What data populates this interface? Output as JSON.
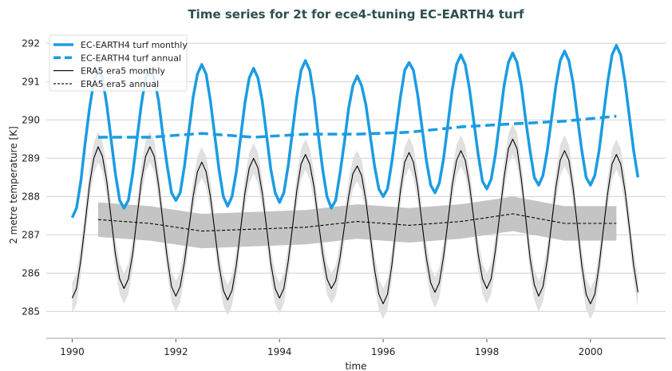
{
  "chart_data": {
    "type": "line",
    "title": "Time series for 2t for ece4-tuning EC-EARTH4 turf",
    "xlabel": "time",
    "ylabel": "2 metre temperature [K]",
    "xlim": [
      1989.5,
      2001.45
    ],
    "ylim": [
      284.3,
      292.3
    ],
    "xticks": [
      1990,
      1992,
      1994,
      1996,
      1998,
      2000
    ],
    "yticks": [
      285,
      286,
      287,
      288,
      289,
      290,
      291,
      292
    ],
    "grid": "horizontal",
    "legend_placement": "top-left",
    "colors": {
      "ec_earth": "#1b9ce2",
      "era5": "#000000",
      "band": "#c8c8c8",
      "title": "#2f4f4f"
    },
    "series": [
      {
        "name": "EC-EARTH4 turf monthly",
        "style": "solid-thick",
        "color": "#1b9ce2",
        "monthly_by_year": [
          {
            "year": 1990,
            "values": [
              287.45,
              287.7,
              288.4,
              289.4,
              290.3,
              291.0,
              291.3,
              291.1,
              290.4,
              289.5,
              288.6,
              287.9
            ]
          },
          {
            "year": 1991,
            "values": [
              287.7,
              287.9,
              288.6,
              289.5,
              290.4,
              291.1,
              291.3,
              291.1,
              290.5,
              289.6,
              288.8,
              288.1
            ]
          },
          {
            "year": 1992,
            "values": [
              287.9,
              288.1,
              288.8,
              289.7,
              290.6,
              291.2,
              291.45,
              291.2,
              290.5,
              289.6,
              288.7,
              288.0
            ]
          },
          {
            "year": 1993,
            "values": [
              287.75,
              288.0,
              288.65,
              289.55,
              290.45,
              291.1,
              291.35,
              291.1,
              290.5,
              289.6,
              288.7,
              288.1
            ]
          },
          {
            "year": 1994,
            "values": [
              287.85,
              288.1,
              288.8,
              289.7,
              290.6,
              291.3,
              291.55,
              291.3,
              290.6,
              289.6,
              288.7,
              288.0
            ]
          },
          {
            "year": 1995,
            "values": [
              287.7,
              287.9,
              288.6,
              289.4,
              290.3,
              290.9,
              291.15,
              290.9,
              290.4,
              289.6,
              288.8,
              288.2
            ]
          },
          {
            "year": 1996,
            "values": [
              288.0,
              288.2,
              288.9,
              289.75,
              290.6,
              291.3,
              291.5,
              291.3,
              290.65,
              289.8,
              288.95,
              288.3
            ]
          },
          {
            "year": 1997,
            "values": [
              288.1,
              288.35,
              289.0,
              289.9,
              290.8,
              291.45,
              291.7,
              291.45,
              290.8,
              289.95,
              289.1,
              288.4
            ]
          },
          {
            "year": 1998,
            "values": [
              288.2,
              288.45,
              289.1,
              290.0,
              290.9,
              291.5,
              291.75,
              291.5,
              290.9,
              290.0,
              289.2,
              288.5
            ]
          },
          {
            "year": 1999,
            "values": [
              288.3,
              288.55,
              289.2,
              290.05,
              290.9,
              291.55,
              291.8,
              291.55,
              290.95,
              290.05,
              289.2,
              288.5
            ]
          },
          {
            "year": 2000,
            "values": [
              288.3,
              288.55,
              289.2,
              290.1,
              291.0,
              291.7,
              291.95,
              291.7,
              291.0,
              290.1,
              289.2,
              288.5
            ]
          }
        ]
      },
      {
        "name": "EC-EARTH4 turf annual",
        "style": "dashed-thick",
        "color": "#1b9ce2",
        "x": [
          1990.5,
          1991.5,
          1992.5,
          1993.5,
          1994.5,
          1995.5,
          1996.5,
          1997.5,
          1998.5,
          1999.5,
          2000.5
        ],
        "values": [
          289.55,
          289.55,
          289.65,
          289.55,
          289.63,
          289.63,
          289.68,
          289.82,
          289.9,
          289.97,
          290.1
        ]
      },
      {
        "name": "ERA5 era5 monthly",
        "style": "solid-thin",
        "color": "#000000",
        "band_halfwidth": 0.4,
        "monthly_by_year": [
          {
            "year": 1990,
            "values": [
              285.35,
              285.6,
              286.35,
              287.3,
              288.3,
              289.0,
              289.3,
              289.05,
              288.4,
              287.45,
              286.5,
              285.85
            ]
          },
          {
            "year": 1991,
            "values": [
              285.6,
              285.85,
              286.5,
              287.45,
              288.4,
              289.05,
              289.3,
              289.05,
              288.3,
              287.35,
              286.4,
              285.65
            ]
          },
          {
            "year": 1992,
            "values": [
              285.4,
              285.65,
              286.3,
              287.15,
              288.0,
              288.65,
              288.9,
              288.65,
              288.0,
              287.1,
              286.2,
              285.55
            ]
          },
          {
            "year": 1993,
            "values": [
              285.3,
              285.55,
              286.2,
              287.15,
              288.1,
              288.75,
              289.0,
              288.75,
              288.1,
              287.2,
              286.25,
              285.6
            ]
          },
          {
            "year": 1994,
            "values": [
              285.35,
              285.6,
              286.3,
              287.2,
              288.15,
              288.85,
              289.1,
              288.85,
              288.25,
              287.35,
              286.5,
              285.85
            ]
          },
          {
            "year": 1995,
            "values": [
              285.6,
              285.8,
              286.4,
              287.2,
              288.0,
              288.6,
              288.8,
              288.55,
              287.9,
              287.0,
              286.1,
              285.45
            ]
          },
          {
            "year": 1996,
            "values": [
              285.2,
              285.45,
              286.2,
              287.2,
              288.15,
              288.9,
              289.15,
              288.9,
              288.25,
              287.3,
              286.4,
              285.75
            ]
          },
          {
            "year": 1997,
            "values": [
              285.5,
              285.75,
              286.45,
              287.35,
              288.3,
              288.95,
              289.2,
              288.95,
              288.3,
              287.4,
              286.5,
              285.85
            ]
          },
          {
            "year": 1998,
            "values": [
              285.6,
              285.85,
              286.6,
              287.55,
              288.5,
              289.25,
              289.5,
              289.25,
              288.45,
              287.45,
              286.4,
              285.7
            ]
          },
          {
            "year": 1999,
            "values": [
              285.4,
              285.65,
              286.35,
              287.3,
              288.25,
              288.95,
              289.2,
              288.95,
              288.2,
              287.2,
              286.2,
              285.45
            ]
          },
          {
            "year": 2000,
            "values": [
              285.2,
              285.45,
              286.2,
              287.15,
              288.1,
              288.85,
              289.1,
              288.85,
              288.15,
              287.2,
              286.2,
              285.5
            ]
          }
        ]
      },
      {
        "name": "ERA5 era5 annual",
        "style": "dashed-thin",
        "color": "#000000",
        "band_halfwidth": 0.45,
        "x": [
          1990.5,
          1991.5,
          1992.5,
          1993.5,
          1994.5,
          1995.5,
          1996.5,
          1997.5,
          1998.5,
          1999.5,
          2000.5
        ],
        "values": [
          287.4,
          287.3,
          287.1,
          287.15,
          287.2,
          287.35,
          287.25,
          287.35,
          287.55,
          287.3,
          287.3
        ]
      }
    ]
  }
}
